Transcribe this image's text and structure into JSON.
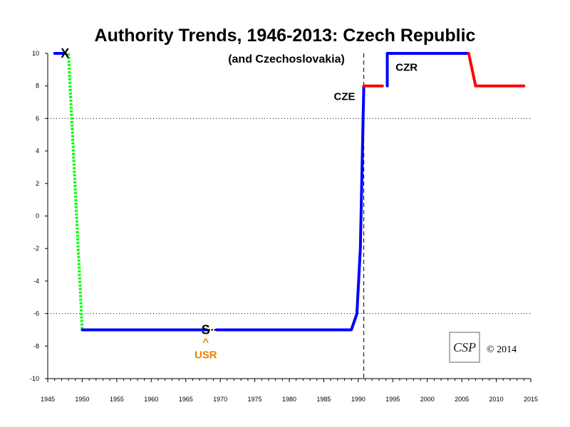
{
  "chart_data": {
    "type": "line",
    "title": "Authority Trends, 1946-2013: Czech Republic",
    "subtitle": "(and Czechoslovakia)",
    "xlim": [
      1945,
      2015
    ],
    "ylim": [
      -10,
      10
    ],
    "x_ticks": [
      1945,
      1950,
      1955,
      1960,
      1965,
      1970,
      1975,
      1980,
      1985,
      1990,
      1995,
      2000,
      2005,
      2010,
      2015
    ],
    "y_ticks": [
      -10,
      -8,
      -6,
      -4,
      -2,
      0,
      2,
      4,
      6,
      8,
      10
    ],
    "reference_lines_y": [
      6,
      -6
    ],
    "reference_line_x": 1990.8,
    "grid": false,
    "series": [
      {
        "color": "#0000ff",
        "style": "solid",
        "points": [
          [
            1946,
            10
          ],
          [
            1947.5,
            10
          ]
        ]
      },
      {
        "color": "#00ff00",
        "style": "dotted",
        "points": [
          [
            1948,
            10
          ],
          [
            1950,
            -7
          ]
        ]
      },
      {
        "color": "#0000ff",
        "style": "solid",
        "points": [
          [
            1950,
            -7
          ],
          [
            1968,
            -7
          ]
        ]
      },
      {
        "color": "#000000",
        "style": "dotted",
        "points": [
          [
            1968.3,
            -7
          ],
          [
            1969.5,
            -7
          ]
        ]
      },
      {
        "color": "#0000ff",
        "style": "solid",
        "points": [
          [
            1969.5,
            -7
          ],
          [
            1989,
            -7
          ],
          [
            1989.8,
            -6
          ],
          [
            1990.3,
            -2
          ],
          [
            1990.6,
            4
          ],
          [
            1990.8,
            8
          ]
        ]
      },
      {
        "color": "#ff0000",
        "style": "solid",
        "points": [
          [
            1990.8,
            8
          ],
          [
            1993.5,
            8
          ]
        ]
      },
      {
        "color": "#0000ff",
        "style": "solid",
        "points": [
          [
            1994.2,
            8
          ],
          [
            1994.2,
            10
          ],
          [
            2006,
            10
          ]
        ]
      },
      {
        "color": "#ff0000",
        "style": "solid",
        "points": [
          [
            2006,
            10
          ],
          [
            2007,
            8
          ],
          [
            2014,
            8
          ]
        ]
      }
    ],
    "annotations": [
      {
        "text": "X",
        "x": 1947.5,
        "y": 10,
        "kind": "mark"
      },
      {
        "text": "S",
        "x": 1967.9,
        "y": -7,
        "kind": "mark"
      },
      {
        "text": "^",
        "x": 1967.9,
        "y": -7.7,
        "kind": "usr"
      },
      {
        "text": "USR",
        "x": 1967.9,
        "y": -8.5,
        "kind": "usr"
      },
      {
        "text": "CZE",
        "x": 1988,
        "y": 7.4,
        "kind": "label"
      },
      {
        "text": "CZR",
        "x": 1997,
        "y": 9.2,
        "kind": "label"
      }
    ],
    "copyright": "© 2014",
    "logo_text": "CSP"
  }
}
